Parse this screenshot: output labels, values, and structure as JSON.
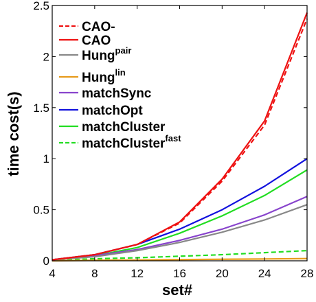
{
  "chart_data": {
    "type": "line",
    "xlabel": "set#",
    "ylabel": "time cost(s)",
    "xlim": [
      4,
      28
    ],
    "ylim": [
      0,
      2.5
    ],
    "xticks": [
      4,
      8,
      12,
      16,
      20,
      24,
      28
    ],
    "yticks": [
      0,
      0.5,
      1,
      1.5,
      2,
      2.5
    ],
    "ytick_labels": [
      "0",
      "0.5",
      "1",
      "1.5",
      "2",
      "2.5"
    ],
    "grid": false,
    "legend_position": "top-left",
    "x": [
      4,
      8,
      12,
      16,
      20,
      24,
      28
    ],
    "series": [
      {
        "name": "CAO-",
        "sup": "",
        "color": "#ee1111",
        "dash": "dashed",
        "values": [
          0.01,
          0.06,
          0.16,
          0.37,
          0.78,
          1.33,
          2.37
        ]
      },
      {
        "name": "CAO",
        "sup": "",
        "color": "#ee1111",
        "dash": "solid",
        "values": [
          0.01,
          0.06,
          0.16,
          0.38,
          0.8,
          1.37,
          2.43
        ]
      },
      {
        "name": "Hung",
        "sup": "pair",
        "color": "#888888",
        "dash": "solid",
        "values": [
          0.01,
          0.04,
          0.1,
          0.18,
          0.28,
          0.4,
          0.55
        ]
      },
      {
        "name": "Hung",
        "sup": "lin",
        "color": "#e69a1a",
        "dash": "solid",
        "values": [
          0.0,
          0.005,
          0.008,
          0.012,
          0.015,
          0.018,
          0.022
        ]
      },
      {
        "name": "matchSync",
        "sup": "",
        "color": "#8844cc",
        "dash": "solid",
        "values": [
          0.01,
          0.05,
          0.11,
          0.2,
          0.31,
          0.45,
          0.63
        ]
      },
      {
        "name": "matchOpt",
        "sup": "",
        "color": "#1111dd",
        "dash": "solid",
        "values": [
          0.01,
          0.06,
          0.16,
          0.31,
          0.5,
          0.73,
          1.0
        ]
      },
      {
        "name": "matchCluster",
        "sup": "",
        "color": "#22dd22",
        "dash": "solid",
        "values": [
          0.01,
          0.05,
          0.13,
          0.27,
          0.44,
          0.64,
          0.89
        ]
      },
      {
        "name": "matchCluster",
        "sup": "fast",
        "color": "#22dd22",
        "dash": "dashed",
        "values": [
          0.005,
          0.02,
          0.03,
          0.045,
          0.06,
          0.08,
          0.1
        ]
      }
    ]
  }
}
